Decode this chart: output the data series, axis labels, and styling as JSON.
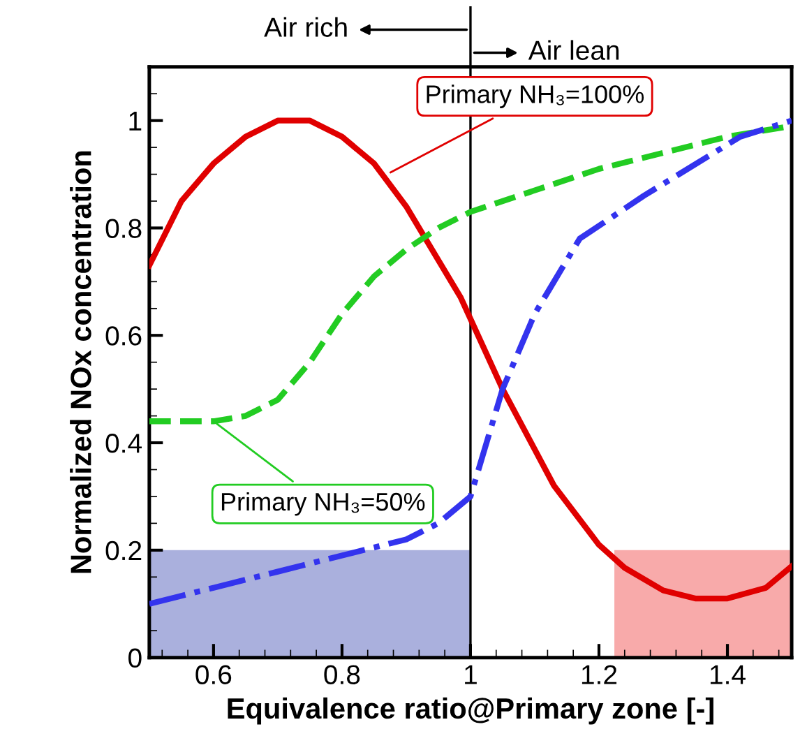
{
  "chart_data": {
    "type": "line",
    "xlabel": "Equivalence ratio@Primary zone [-]",
    "ylabel": "Normalized NOx concentration",
    "xlim": [
      0.5,
      1.5
    ],
    "ylim": [
      0,
      1.1
    ],
    "xticks": [
      0.6,
      0.8,
      1,
      1.2,
      1.4
    ],
    "yticks": [
      0,
      0.2,
      0.4,
      0.6,
      0.8,
      1
    ],
    "grid": false,
    "legend": false,
    "series": [
      {
        "type": "area",
        "color": "#aab0dd",
        "x": [
          0.5,
          1.0
        ],
        "values": [
          0.2,
          0.2
        ]
      },
      {
        "type": "area",
        "color": "#f8aaaa",
        "x": [
          1.224,
          1.5
        ],
        "values": [
          0.2,
          0.2
        ]
      },
      {
        "type": "line",
        "color": "#e00000",
        "line_style": "solid",
        "x": [
          0.5,
          0.55,
          0.6,
          0.65,
          0.7,
          0.75,
          0.8,
          0.85,
          0.9,
          0.95,
          0.985,
          1.05,
          1.13,
          1.2,
          1.24,
          1.3,
          1.35,
          1.4,
          1.46,
          1.5
        ],
        "values": [
          0.73,
          0.85,
          0.92,
          0.97,
          1.0,
          1.0,
          0.97,
          0.92,
          0.84,
          0.74,
          0.67,
          0.5,
          0.32,
          0.21,
          0.167,
          0.125,
          0.11,
          0.11,
          0.13,
          0.17
        ]
      },
      {
        "type": "line",
        "color": "#22cc22",
        "line_style": "dashed",
        "x": [
          0.5,
          0.55,
          0.6,
          0.65,
          0.7,
          0.75,
          0.8,
          0.85,
          0.9,
          0.95,
          1.0,
          1.1,
          1.2,
          1.3,
          1.4,
          1.5
        ],
        "values": [
          0.44,
          0.44,
          0.44,
          0.45,
          0.48,
          0.55,
          0.64,
          0.71,
          0.76,
          0.8,
          0.83,
          0.87,
          0.91,
          0.94,
          0.97,
          0.99
        ]
      },
      {
        "type": "line",
        "color": "#3333ee",
        "line_style": "dashdot",
        "x": [
          0.5,
          0.6,
          0.7,
          0.8,
          0.9,
          0.95,
          1.0,
          1.02,
          1.05,
          1.1,
          1.17,
          1.27,
          1.42,
          1.5
        ],
        "values": [
          0.1,
          0.13,
          0.16,
          0.19,
          0.22,
          0.25,
          0.3,
          0.38,
          0.5,
          0.64,
          0.78,
          0.86,
          0.97,
          1.0
        ]
      }
    ],
    "ref_lines": [
      {
        "axis": "x",
        "value": 1,
        "color": "#000000"
      }
    ],
    "annotations": [
      {
        "text": "Primary NH₃=100%",
        "x": 0.87,
        "y": 0.9
      },
      {
        "text": "Primary NH₃=50%",
        "x": 0.6,
        "y": 0.44
      },
      "Air rich",
      "Air lean"
    ]
  }
}
